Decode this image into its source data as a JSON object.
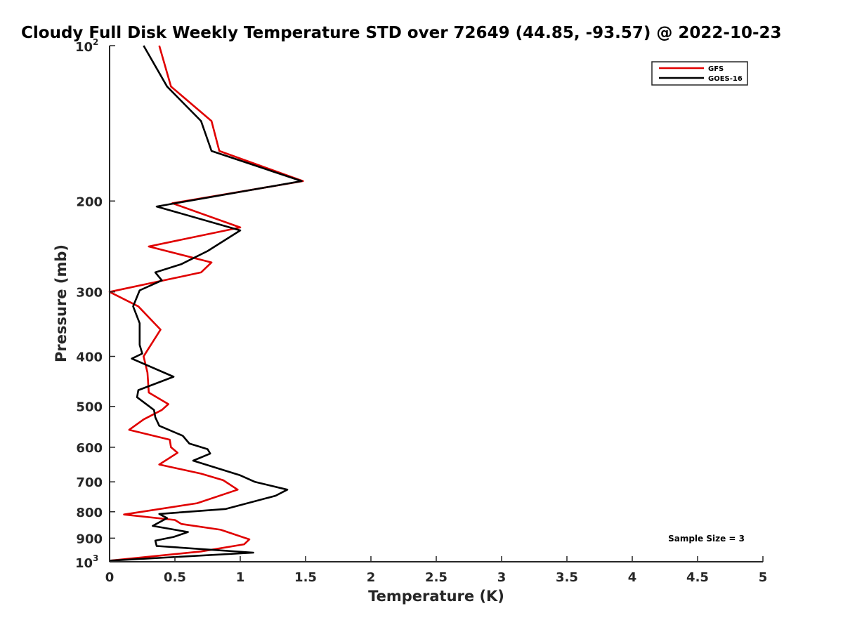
{
  "chart_data": {
    "type": "line",
    "title": "Cloudy Full Disk Weekly Temperature STD over 72649 (44.85, -93.57) @ 2022-10-23",
    "xlabel": "Temperature (K)",
    "ylabel": "Pressure (mb)",
    "xlim": [
      0,
      5
    ],
    "ylim": [
      100,
      1000
    ],
    "y_scale": "log",
    "y_reversed": true,
    "grid": false,
    "legend_position": "top-right",
    "xticks": [
      0,
      0.5,
      1,
      1.5,
      2,
      2.5,
      3,
      3.5,
      4,
      4.5,
      5
    ],
    "xtick_labels": [
      "0",
      "0.5",
      "1",
      "1.5",
      "2",
      "2.5",
      "3",
      "3.5",
      "4",
      "4.5",
      "5"
    ],
    "yticks": [
      {
        "value": 100,
        "base": "10",
        "exp": "2",
        "label": ""
      },
      {
        "value": 200,
        "base": "",
        "exp": "",
        "label": "200"
      },
      {
        "value": 300,
        "base": "",
        "exp": "",
        "label": "300"
      },
      {
        "value": 400,
        "base": "",
        "exp": "",
        "label": "400"
      },
      {
        "value": 500,
        "base": "",
        "exp": "",
        "label": "500"
      },
      {
        "value": 600,
        "base": "",
        "exp": "",
        "label": "600"
      },
      {
        "value": 700,
        "base": "",
        "exp": "",
        "label": "700"
      },
      {
        "value": 800,
        "base": "",
        "exp": "",
        "label": "800"
      },
      {
        "value": 900,
        "base": "",
        "exp": "",
        "label": "900"
      },
      {
        "value": 1000,
        "base": "10",
        "exp": "3",
        "label": ""
      }
    ],
    "annotation": "Sample Size = 3",
    "series": [
      {
        "name": "GFS",
        "color": "#e00000",
        "points": [
          [
            0.38,
            100
          ],
          [
            0.47,
            120
          ],
          [
            0.78,
            140
          ],
          [
            0.84,
            160
          ],
          [
            1.48,
            183
          ],
          [
            0.48,
            202
          ],
          [
            1.0,
            225
          ],
          [
            0.3,
            245
          ],
          [
            0.78,
            263
          ],
          [
            0.7,
            275
          ],
          [
            0.0,
            300
          ],
          [
            0.22,
            320
          ],
          [
            0.39,
            355
          ],
          [
            0.26,
            400
          ],
          [
            0.29,
            430
          ],
          [
            0.3,
            470
          ],
          [
            0.45,
            495
          ],
          [
            0.4,
            508
          ],
          [
            0.26,
            530
          ],
          [
            0.15,
            555
          ],
          [
            0.46,
            580
          ],
          [
            0.47,
            600
          ],
          [
            0.52,
            615
          ],
          [
            0.38,
            648
          ],
          [
            0.7,
            675
          ],
          [
            0.87,
            695
          ],
          [
            0.98,
            725
          ],
          [
            0.67,
            770
          ],
          [
            0.11,
            810
          ],
          [
            0.5,
            830
          ],
          [
            0.55,
            845
          ],
          [
            0.85,
            867
          ],
          [
            1.07,
            905
          ],
          [
            1.03,
            925
          ],
          [
            0.7,
            955
          ],
          [
            0.0,
            995
          ]
        ]
      },
      {
        "name": "GOES-16",
        "color": "#000000",
        "points": [
          [
            0.26,
            100
          ],
          [
            0.44,
            120
          ],
          [
            0.7,
            140
          ],
          [
            0.78,
            160
          ],
          [
            1.47,
            183
          ],
          [
            0.36,
            205
          ],
          [
            1.0,
            228
          ],
          [
            0.75,
            250
          ],
          [
            0.55,
            265
          ],
          [
            0.35,
            275
          ],
          [
            0.4,
            285
          ],
          [
            0.23,
            298
          ],
          [
            0.18,
            320
          ],
          [
            0.23,
            345
          ],
          [
            0.23,
            380
          ],
          [
            0.25,
            395
          ],
          [
            0.17,
            404
          ],
          [
            0.49,
            438
          ],
          [
            0.22,
            465
          ],
          [
            0.21,
            480
          ],
          [
            0.34,
            508
          ],
          [
            0.35,
            525
          ],
          [
            0.38,
            545
          ],
          [
            0.56,
            570
          ],
          [
            0.61,
            590
          ],
          [
            0.75,
            605
          ],
          [
            0.77,
            617
          ],
          [
            0.64,
            637
          ],
          [
            1.0,
            680
          ],
          [
            1.11,
            700
          ],
          [
            1.36,
            725
          ],
          [
            1.27,
            745
          ],
          [
            0.89,
            790
          ],
          [
            0.38,
            808
          ],
          [
            0.44,
            823
          ],
          [
            0.33,
            852
          ],
          [
            0.6,
            876
          ],
          [
            0.49,
            895
          ],
          [
            0.35,
            910
          ],
          [
            0.36,
            932
          ],
          [
            1.1,
            960
          ],
          [
            0.0,
            995
          ]
        ]
      }
    ]
  }
}
